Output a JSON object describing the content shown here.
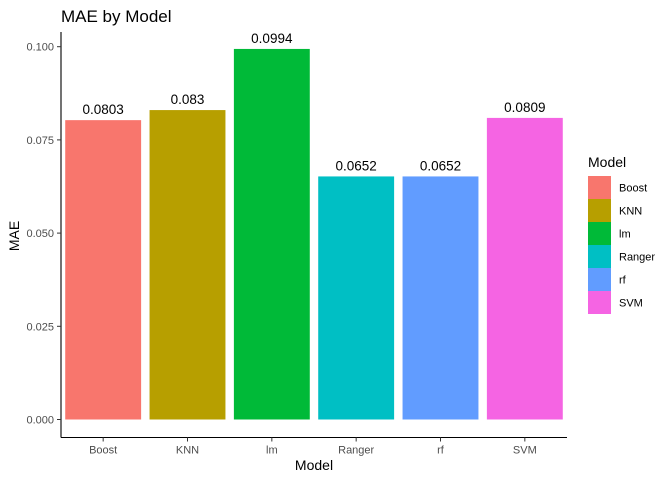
{
  "chart_data": {
    "type": "bar",
    "title": "MAE by Model",
    "xlabel": "Model",
    "ylabel": "MAE",
    "categories": [
      "Boost",
      "KNN",
      "lm",
      "Ranger",
      "rf",
      "SVM"
    ],
    "values": [
      0.0803,
      0.083,
      0.0994,
      0.0652,
      0.0652,
      0.0809
    ],
    "data_labels": [
      "0.0803",
      "0.083",
      "0.0994",
      "0.0652",
      "0.0652",
      "0.0809"
    ],
    "colors": [
      "#F8766D",
      "#B79F00",
      "#00BA38",
      "#00BFC4",
      "#619CFF",
      "#F564E3"
    ],
    "ylim": [
      0,
      0.1044
    ],
    "yticks": [
      0.0,
      0.025,
      0.05,
      0.075,
      0.1
    ],
    "ytick_labels": [
      "0.000",
      "0.025",
      "0.050",
      "0.075",
      "0.100"
    ],
    "grid": false,
    "legend": {
      "title": "Model",
      "position": "right",
      "entries": [
        "Boost",
        "KNN",
        "lm",
        "Ranger",
        "rf",
        "SVM"
      ]
    }
  }
}
